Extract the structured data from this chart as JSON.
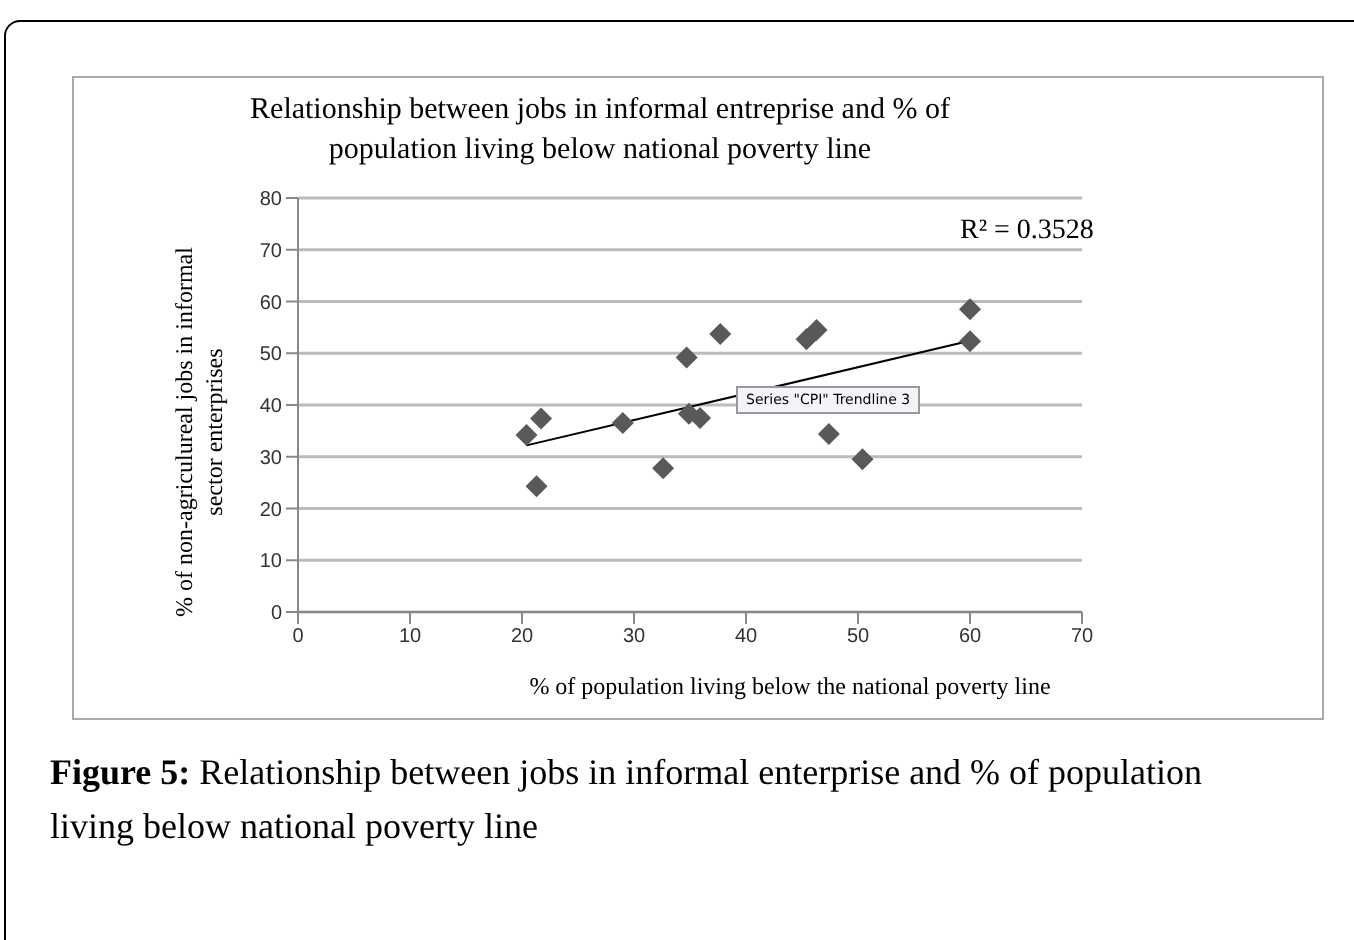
{
  "chart_data": {
    "type": "scatter",
    "title": "Relationship between jobs in informal entreprise and % of\npopulation living below national poverty line",
    "xlabel": "% of population living below the national poverty line",
    "ylabel": "% of non-agriculureal jobs in informal\nsector enterprises",
    "annotations": [
      "R² = 0.3528",
      "Series \"CPI\" Trendline 3",
      "Figure 5:",
      "Relationship between jobs in informal enterprise and % of population living below national poverty line"
    ],
    "series": [
      {
        "color": "#595959",
        "marker": "diamond",
        "x": [
          20.4,
          21.7,
          21.3,
          29.0,
          32.6,
          34.7,
          34.9,
          35.9,
          37.7,
          45.4,
          46.3,
          47.4,
          50.4,
          60.0,
          60.0
        ],
        "values": [
          34.2,
          37.4,
          24.3,
          36.5,
          27.8,
          49.2,
          38.3,
          37.5,
          53.7,
          52.7,
          54.5,
          34.4,
          29.5,
          58.5,
          52.3
        ]
      },
      {
        "type": "line",
        "color": "#000000",
        "x": [
          20.4,
          60.0
        ],
        "values": [
          32.2,
          52.4
        ]
      }
    ],
    "xlim": [
      0,
      70
    ],
    "xticks": [
      0,
      10,
      20,
      30,
      40,
      50,
      60,
      70
    ],
    "ylim": [
      0,
      80
    ],
    "yticks": [
      0,
      10,
      20,
      30,
      40,
      50,
      60,
      70,
      80
    ],
    "grid": "y",
    "legend": false
  }
}
